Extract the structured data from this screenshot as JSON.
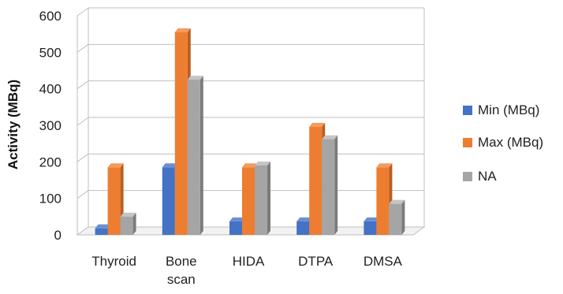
{
  "chart_data": {
    "type": "bar",
    "title": "",
    "xlabel": "",
    "ylabel": "Activity (MBq)",
    "categories": [
      [
        "Thyroid"
      ],
      [
        "Bone",
        "scan"
      ],
      [
        "HIDA"
      ],
      [
        "DTPA"
      ],
      [
        "DMSA"
      ]
    ],
    "series": [
      {
        "name": "Min (MBq)",
        "color": "#4472C4",
        "side": "#2F5597",
        "top": "#6A8FD3",
        "values": [
          18,
          185,
          37,
          37,
          37
        ]
      },
      {
        "name": "Max (MBq)",
        "color": "#ED7D31",
        "side": "#B85E21",
        "top": "#F39A5C",
        "values": [
          185,
          555,
          185,
          296,
          185
        ]
      },
      {
        "name": "NA",
        "color": "#A5A5A5",
        "side": "#7B7B7B",
        "top": "#C4C4C4",
        "values": [
          50,
          425,
          190,
          262,
          85
        ]
      }
    ],
    "ylim": [
      0,
      600
    ],
    "yticks": [
      0,
      100,
      200,
      300,
      400,
      500,
      600
    ],
    "grid": true,
    "legend_position": "right"
  }
}
